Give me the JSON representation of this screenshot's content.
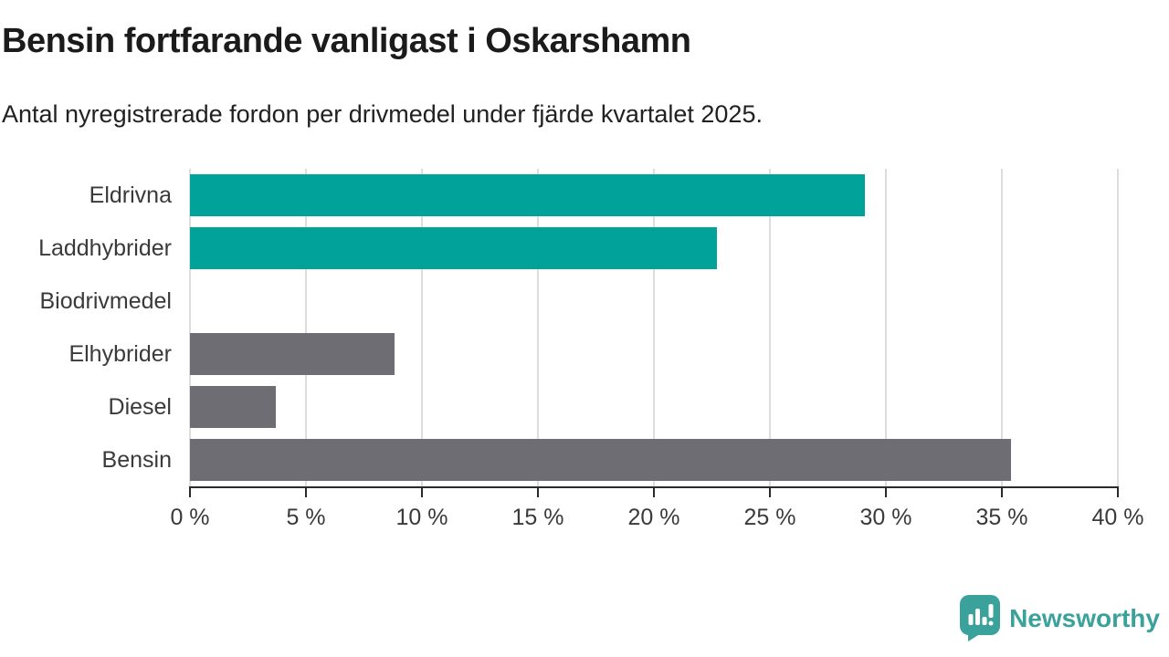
{
  "chart_data": {
    "type": "bar",
    "orientation": "horizontal",
    "title": "Bensin fortfarande vanligast i Oskarshamn",
    "subtitle": "Antal nyregistrerade fordon per drivmedel under fjärde kvartalet 2025.",
    "categories": [
      "Eldrivna",
      "Laddhybrider",
      "Biodrivmedel",
      "Elhybrider",
      "Diesel",
      "Bensin"
    ],
    "values": [
      29.1,
      22.7,
      0,
      8.8,
      3.7,
      35.4
    ],
    "unit": "%",
    "bar_colors": [
      "#00A299",
      "#00A299",
      "#6D6D73",
      "#6D6D73",
      "#6D6D73",
      "#6D6D73"
    ],
    "xlim": [
      0,
      40
    ],
    "x_ticks": [
      0,
      5,
      10,
      15,
      20,
      25,
      30,
      35,
      40
    ],
    "x_tick_labels": [
      "0 %",
      "5 %",
      "10 %",
      "15 %",
      "20 %",
      "25 %",
      "30 %",
      "35 %",
      "40 %"
    ],
    "xlabel": "",
    "ylabel": "",
    "grid": "vertical-only",
    "legend": "none"
  },
  "colors": {
    "teal": "#00A299",
    "gray": "#6D6D73",
    "grid": "#DDDDDD",
    "axis": "#2B2B2B",
    "text": "#3A3A3A",
    "brand": "#3BA29B"
  },
  "footer": {
    "brand": "Newsworthy"
  },
  "icons": {
    "brand_logo": "newsworthy-speech-bubble-bar-chart-icon"
  }
}
